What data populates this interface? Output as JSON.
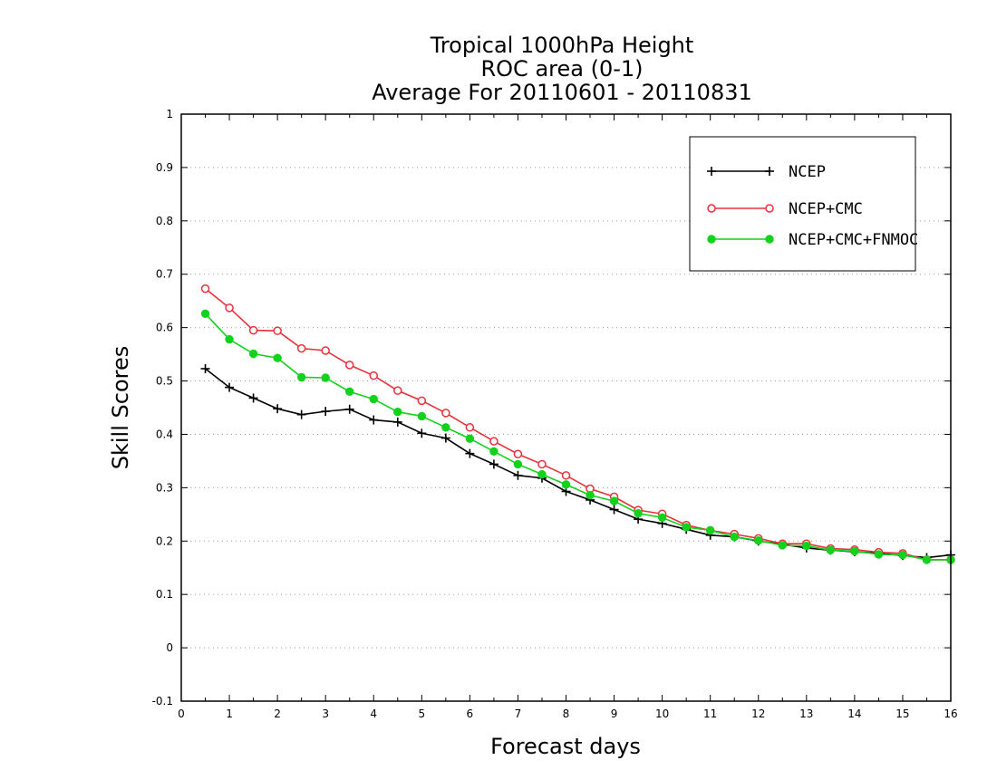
{
  "chart_data": {
    "type": "line",
    "title_lines": [
      "Tropical 1000hPa Height",
      "ROC area (0-1)",
      "Average For 20110601 - 20110831"
    ],
    "xlabel": "Forecast days",
    "ylabel": "Skill Scores",
    "xlim": [
      0,
      16
    ],
    "ylim": [
      -0.1,
      1
    ],
    "x_ticks": [
      "0",
      "1",
      "2",
      "3",
      "4",
      "5",
      "6",
      "7",
      "8",
      "9",
      "10",
      "11",
      "12",
      "13",
      "14",
      "15",
      "16"
    ],
    "y_ticks": [
      "-0.1",
      "0",
      "0.1",
      "0.2",
      "0.3",
      "0.4",
      "0.5",
      "0.6",
      "0.7",
      "0.8",
      "0.9",
      "1"
    ],
    "grid": "horizontal dotted",
    "legend_position": "top-right",
    "x": [
      0.5,
      1,
      1.5,
      2,
      2.5,
      3,
      3.5,
      4,
      4.5,
      5,
      5.5,
      6,
      6.5,
      7,
      7.5,
      8,
      8.5,
      9,
      9.5,
      10,
      10.5,
      11,
      11.5,
      12,
      12.5,
      13,
      13.5,
      14,
      14.5,
      15,
      15.5,
      16
    ],
    "series": [
      {
        "name": "NCEP",
        "color": "#000000",
        "marker": "plus",
        "values": [
          0.523,
          0.488,
          0.468,
          0.448,
          0.437,
          0.443,
          0.447,
          0.427,
          0.423,
          0.402,
          0.393,
          0.364,
          0.344,
          0.323,
          0.318,
          0.293,
          0.277,
          0.259,
          0.241,
          0.233,
          0.222,
          0.211,
          0.208,
          0.2,
          0.194,
          0.187,
          0.183,
          0.18,
          0.177,
          0.173,
          0.169,
          0.174
        ]
      },
      {
        "name": "NCEP+CMC",
        "color": "#e8313a",
        "marker": "open-circle",
        "values": [
          0.673,
          0.637,
          0.595,
          0.594,
          0.561,
          0.557,
          0.53,
          0.51,
          0.482,
          0.463,
          0.44,
          0.413,
          0.387,
          0.363,
          0.344,
          0.323,
          0.298,
          0.283,
          0.258,
          0.251,
          0.23,
          0.22,
          0.213,
          0.205,
          0.195,
          0.195,
          0.186,
          0.184,
          0.179,
          0.177,
          0.165,
          0.165
        ]
      },
      {
        "name": "NCEP+CMC+FNMOC",
        "color": "#12d21c",
        "marker": "filled-circle",
        "values": [
          0.626,
          0.578,
          0.551,
          0.543,
          0.507,
          0.506,
          0.48,
          0.466,
          0.442,
          0.434,
          0.413,
          0.392,
          0.368,
          0.344,
          0.325,
          0.306,
          0.286,
          0.275,
          0.252,
          0.244,
          0.226,
          0.22,
          0.208,
          0.201,
          0.192,
          0.191,
          0.183,
          0.181,
          0.175,
          0.174,
          0.165,
          0.165
        ]
      }
    ]
  }
}
